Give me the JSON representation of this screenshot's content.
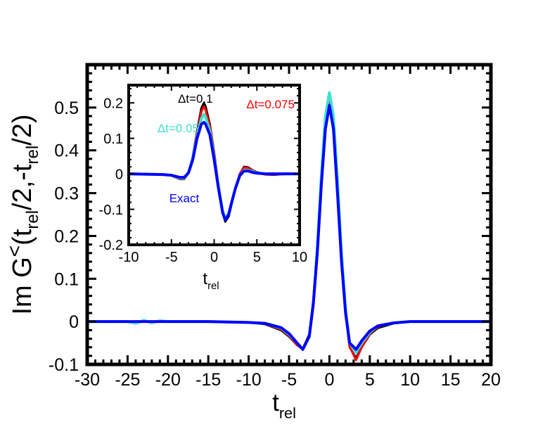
{
  "chart_data": [
    {
      "type": "line",
      "role": "main",
      "xlabel_base": "t",
      "xlabel_sub": "rel",
      "ylabel_parts": [
        "Im G",
        "<",
        "(t",
        "rel",
        "/2,-t",
        "rel",
        "/2)"
      ],
      "xlim": [
        -30,
        20
      ],
      "ylim": [
        -0.1,
        0.6
      ],
      "xticks": [
        -30,
        -25,
        -20,
        -15,
        -10,
        -5,
        0,
        5,
        10,
        15,
        20
      ],
      "xtick_labels": [
        "-30",
        "-25",
        "-20",
        "-15",
        "-10",
        "-5",
        "0",
        "5",
        "10",
        "15",
        "20"
      ],
      "yticks": [
        -0.1,
        0,
        0.1,
        0.2,
        0.3,
        0.4,
        0.5
      ],
      "ytick_labels": [
        "-0.1",
        "0",
        "0.1",
        "0.2",
        "0.3",
        "0.4",
        "0.5"
      ],
      "grid": false,
      "series": [
        {
          "color": "#000000",
          "width": 3,
          "x": [
            -30,
            -20,
            -15,
            -10,
            -8,
            -6,
            -5,
            -4,
            -3.3,
            -2.5,
            -2,
            -1.5,
            -1,
            -0.5,
            0,
            0.5,
            1,
            1.5,
            2,
            2.5,
            3.3,
            4,
            5,
            6,
            8,
            10,
            15,
            20
          ],
          "y": [
            0,
            0,
            0,
            -0.002,
            -0.006,
            -0.02,
            -0.035,
            -0.055,
            -0.063,
            -0.03,
            0.05,
            0.18,
            0.34,
            0.47,
            0.52,
            0.47,
            0.32,
            0.15,
            0.02,
            -0.06,
            -0.085,
            -0.06,
            -0.03,
            -0.015,
            -0.004,
            0,
            0,
            0
          ]
        },
        {
          "color": "#ff0000",
          "width": 3,
          "x": [
            -30,
            -20,
            -15,
            -10,
            -8,
            -6,
            -5,
            -4,
            -3.3,
            -2.5,
            -2,
            -1.5,
            -1,
            -0.5,
            0,
            0.5,
            1,
            1.5,
            2,
            2.5,
            3.3,
            4,
            5,
            6,
            8,
            10,
            15,
            20
          ],
          "y": [
            0,
            0,
            0,
            -0.002,
            -0.005,
            -0.018,
            -0.033,
            -0.055,
            -0.065,
            -0.033,
            0.045,
            0.175,
            0.34,
            0.47,
            0.525,
            0.47,
            0.32,
            0.15,
            0.02,
            -0.058,
            -0.09,
            -0.06,
            -0.028,
            -0.012,
            -0.003,
            0,
            0,
            0
          ]
        },
        {
          "color": "#40e0d0",
          "width": 4,
          "x": [
            -30,
            -25,
            -24,
            -23,
            -22,
            -21,
            -20,
            -15,
            -10,
            -8,
            -6,
            -5,
            -4,
            -3.3,
            -2.5,
            -2,
            -1.5,
            -1,
            -0.5,
            0,
            0.5,
            1,
            1.5,
            2,
            2.5,
            3.3,
            4,
            5,
            6,
            8,
            10,
            15,
            20
          ],
          "y": [
            0,
            0,
            -0.004,
            0.003,
            -0.003,
            0.002,
            0,
            0,
            -0.002,
            -0.004,
            -0.015,
            -0.03,
            -0.05,
            -0.065,
            -0.035,
            0.04,
            0.17,
            0.34,
            0.48,
            0.535,
            0.48,
            0.33,
            0.16,
            0.03,
            -0.05,
            -0.072,
            -0.05,
            -0.025,
            -0.01,
            -0.003,
            0,
            0,
            0
          ]
        },
        {
          "color": "#0000ff",
          "width": 4,
          "x": [
            -30,
            -20,
            -15,
            -10,
            -8,
            -6,
            -5,
            -4,
            -3.3,
            -2.5,
            -2,
            -1.5,
            -1,
            -0.5,
            0,
            0.5,
            1,
            1.5,
            2,
            2.5,
            3.3,
            4,
            5,
            6,
            8,
            10,
            15,
            20
          ],
          "y": [
            0,
            0,
            0,
            -0.002,
            -0.004,
            -0.014,
            -0.028,
            -0.05,
            -0.065,
            -0.035,
            0.04,
            0.16,
            0.32,
            0.45,
            0.505,
            0.45,
            0.3,
            0.14,
            0.02,
            -0.05,
            -0.065,
            -0.045,
            -0.022,
            -0.01,
            -0.003,
            0,
            0,
            0
          ]
        }
      ]
    },
    {
      "type": "line",
      "role": "inset",
      "xlabel_base": "t",
      "xlabel_sub": "rel",
      "xlim": [
        -10,
        10
      ],
      "ylim": [
        -0.2,
        0.25
      ],
      "xticks": [
        -10,
        -5,
        0,
        5,
        10
      ],
      "xtick_labels": [
        "-10",
        "-5",
        "0",
        "5",
        "10"
      ],
      "yticks": [
        -0.2,
        -0.1,
        0,
        0.1,
        0.2
      ],
      "ytick_labels": [
        "-0.2",
        "-0.1",
        "0",
        "0.1",
        "0.2"
      ],
      "grid": false,
      "annotations": [
        {
          "text": "Δt=0.1",
          "color": "#000000",
          "x": -2.2,
          "y": 0.2
        },
        {
          "text": "Δt=0.075",
          "color": "#ff0000",
          "x": 6.6,
          "y": 0.185
        },
        {
          "text": "Δt=0.05",
          "color": "#40e0d0",
          "x": -4.2,
          "y": 0.117
        },
        {
          "text": "Exact",
          "color": "#0000ff",
          "x": -3.5,
          "y": -0.08
        }
      ],
      "series": [
        {
          "color": "#000000",
          "width": 3,
          "x": [
            -10,
            -6,
            -5,
            -4,
            -3.5,
            -3,
            -2.5,
            -2,
            -1.5,
            -1.2,
            -1,
            -0.5,
            0,
            0.5,
            1,
            1.3,
            1.7,
            2,
            2.5,
            3,
            3.5,
            4,
            4.5,
            5,
            6,
            7,
            8,
            10
          ],
          "y": [
            0,
            -0.002,
            -0.005,
            -0.015,
            -0.015,
            0.002,
            0.05,
            0.12,
            0.185,
            0.2,
            0.19,
            0.14,
            0.06,
            -0.03,
            -0.11,
            -0.135,
            -0.12,
            -0.09,
            -0.04,
            0,
            0.02,
            0.018,
            0.01,
            0.005,
            -0.002,
            -0.003,
            -0.001,
            0
          ]
        },
        {
          "color": "#ff0000",
          "width": 3,
          "x": [
            -10,
            -6,
            -5,
            -4,
            -3.5,
            -3,
            -2.5,
            -2,
            -1.5,
            -1.2,
            -1,
            -0.5,
            0,
            0.5,
            1,
            1.3,
            1.7,
            2,
            2.5,
            3,
            3.5,
            4,
            4.5,
            5,
            6,
            7,
            8,
            10
          ],
          "y": [
            0,
            -0.002,
            -0.005,
            -0.014,
            -0.014,
            0.002,
            0.048,
            0.115,
            0.175,
            0.19,
            0.18,
            0.135,
            0.055,
            -0.03,
            -0.105,
            -0.13,
            -0.117,
            -0.088,
            -0.04,
            0,
            0.018,
            0.016,
            0.009,
            0.004,
            -0.002,
            -0.002,
            -0.001,
            0
          ]
        },
        {
          "color": "#40e0d0",
          "width": 4,
          "x": [
            -10,
            -6,
            -5,
            -4,
            -3.5,
            -3,
            -2.5,
            -2,
            -1.5,
            -1.2,
            -1,
            -0.5,
            0,
            0.5,
            1,
            1.3,
            1.7,
            2,
            2.5,
            3,
            3.5,
            4,
            4.5,
            5,
            6,
            7,
            8,
            10
          ],
          "y": [
            0,
            -0.002,
            -0.004,
            -0.012,
            -0.012,
            0.003,
            0.045,
            0.105,
            0.155,
            0.168,
            0.16,
            0.12,
            0.045,
            -0.035,
            -0.105,
            -0.125,
            -0.112,
            -0.085,
            -0.04,
            -0.005,
            0.01,
            0.01,
            0.006,
            0.003,
            0,
            0,
            0,
            0
          ]
        },
        {
          "color": "#0000ff",
          "width": 4,
          "x": [
            -10,
            -6,
            -5,
            -4,
            -3.5,
            -3,
            -2.5,
            -2,
            -1.5,
            -1.2,
            -1,
            -0.5,
            0,
            0.5,
            1,
            1.3,
            1.7,
            2,
            2.5,
            3,
            3.5,
            4,
            4.5,
            5,
            6,
            7,
            8,
            10
          ],
          "y": [
            0,
            -0.002,
            -0.004,
            -0.01,
            -0.01,
            0.003,
            0.04,
            0.1,
            0.14,
            0.145,
            0.14,
            0.11,
            0.04,
            -0.04,
            -0.11,
            -0.13,
            -0.115,
            -0.085,
            -0.04,
            -0.005,
            0.008,
            0.008,
            0.004,
            0.002,
            0,
            0,
            0,
            0
          ]
        }
      ]
    }
  ]
}
